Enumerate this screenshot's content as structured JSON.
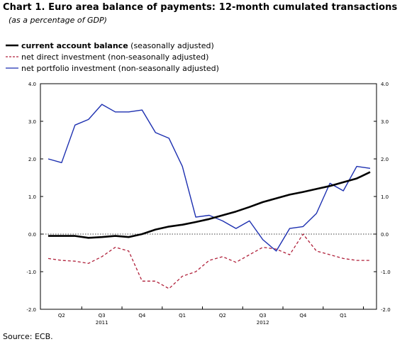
{
  "title": "Chart 1. Euro area balance of payments: 12-month cumulated transactions",
  "subtitle": "(as a percentage of GDP)",
  "source": "Source: ECB.",
  "legend": [
    {
      "bold": "current account balance",
      "rest": " (seasonally adjusted)",
      "color": "#000000",
      "style": "solid-thick"
    },
    {
      "bold": "",
      "rest": "net direct investment (non-seasonally adjusted)",
      "color": "#b0203a",
      "style": "dashed"
    },
    {
      "bold": "",
      "rest": "net portfolio investment (non-seasonally adjusted)",
      "color": "#1c2fb0",
      "style": "solid"
    }
  ],
  "chart_data": {
    "type": "line",
    "ylim": [
      -2.0,
      4.0
    ],
    "yticks": [
      "-2.0",
      "-1.0",
      "0.0",
      "1.0",
      "2.0",
      "3.0",
      "4.0"
    ],
    "quarter_labels": [
      "Q2",
      "Q3",
      "Q4",
      "Q1",
      "Q2",
      "Q3",
      "Q4",
      "Q1"
    ],
    "year_labels": [
      "2011",
      "2012"
    ],
    "x": [
      "2011-03",
      "2011-04",
      "2011-05",
      "2011-06",
      "2011-07",
      "2011-08",
      "2011-09",
      "2011-10",
      "2011-11",
      "2011-12",
      "2012-01",
      "2012-02",
      "2012-03",
      "2012-04",
      "2012-05",
      "2012-06",
      "2012-07",
      "2012-08",
      "2012-09",
      "2012-10",
      "2012-11",
      "2012-12",
      "2013-01",
      "2013-02",
      "2013-03"
    ],
    "series": [
      {
        "name": "current account balance",
        "color": "#000000",
        "values": [
          -0.05,
          -0.05,
          -0.05,
          -0.1,
          -0.08,
          -0.05,
          -0.08,
          0.0,
          0.12,
          0.2,
          0.25,
          0.32,
          0.4,
          0.5,
          0.6,
          0.72,
          0.85,
          0.95,
          1.05,
          1.12,
          1.2,
          1.28,
          1.38,
          1.48,
          1.65
        ]
      },
      {
        "name": "net direct investment",
        "color": "#b0203a",
        "values": [
          -0.65,
          -0.7,
          -0.72,
          -0.78,
          -0.6,
          -0.35,
          -0.45,
          -1.25,
          -1.25,
          -1.45,
          -1.12,
          -1.0,
          -0.7,
          -0.6,
          -0.75,
          -0.55,
          -0.35,
          -0.4,
          -0.55,
          0.0,
          -0.45,
          -0.55,
          -0.65,
          -0.7,
          -0.7
        ]
      },
      {
        "name": "net portfolio investment",
        "color": "#1c2fb0",
        "values": [
          2.0,
          1.9,
          2.9,
          3.05,
          3.45,
          3.25,
          3.25,
          3.3,
          2.7,
          2.55,
          1.8,
          0.45,
          0.5,
          0.35,
          0.15,
          0.35,
          -0.15,
          -0.45,
          0.15,
          0.2,
          0.55,
          1.35,
          1.15,
          1.8,
          1.75
        ]
      }
    ],
    "zero_line": "dotted",
    "grid": false,
    "legend_position": "top-left"
  }
}
